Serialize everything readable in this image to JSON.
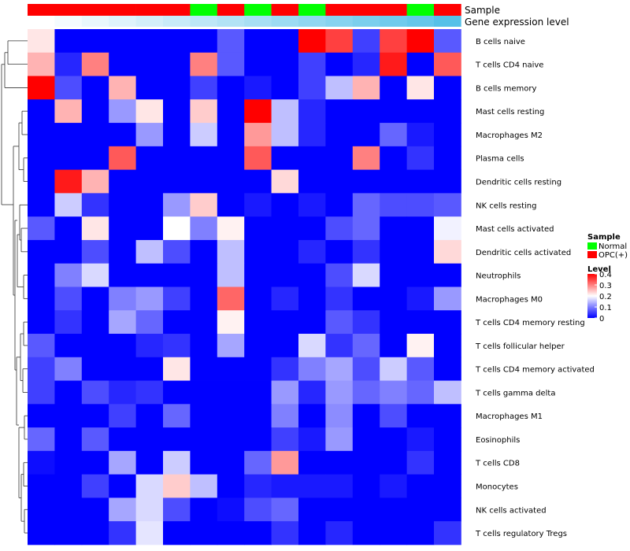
{
  "chart_data": {
    "type": "heatmap",
    "title": "",
    "annotation_rows": [
      {
        "name": "Sample",
        "values": [
          "OPC(+)",
          "OPC(+)",
          "OPC(+)",
          "OPC(+)",
          "OPC(+)",
          "OPC(+)",
          "Normal",
          "OPC(+)",
          "Normal",
          "OPC(+)",
          "Normal",
          "OPC(+)",
          "OPC(+)",
          "OPC(+)",
          "Normal",
          "OPC(+)"
        ]
      },
      {
        "name": "Gene expression level",
        "values": [
          0.0,
          0.02,
          0.04,
          0.06,
          0.08,
          0.1,
          0.13,
          0.16,
          0.19,
          0.22,
          0.25,
          0.28,
          0.31,
          0.33,
          0.36,
          0.38
        ],
        "colors": [
          "#ffffff",
          "#f4fbfe",
          "#e9f7fc",
          "#deF3fb",
          "#d3eff9",
          "#c8ebf8",
          "#bde7f6",
          "#b2e3f5",
          "#a7dff3",
          "#9cdbf2",
          "#91d7f0",
          "#86d3ef",
          "#7bcfed",
          "#70cbec",
          "#65c7ea",
          "#56c1e8"
        ]
      }
    ],
    "row_labels": [
      "B cells naive",
      "T cells CD4 naive",
      "B cells memory",
      "Mast cells resting",
      "Macrophages M2",
      "Plasma cells",
      "Dendritic cells resting",
      "NK cells resting",
      "Mast cells activated",
      "Dendritic cells activated",
      "Neutrophils",
      "Macrophages M0",
      "T cells CD4 memory resting",
      "T cells follicular helper",
      "T cells CD4 memory activated",
      "T cells gamma delta",
      "Macrophages M1",
      "Eosinophils",
      "T cells CD8",
      "Monocytes",
      "NK cells activated",
      "T cells regulatory  Tregs"
    ],
    "values": [
      [
        0.22,
        0.0,
        0.0,
        0.0,
        0.0,
        0.0,
        0.0,
        0.07,
        0.0,
        0.0,
        0.4,
        0.35,
        0.05,
        0.35,
        0.4,
        0.07
      ],
      [
        0.26,
        0.03,
        0.3,
        0.0,
        0.0,
        0.0,
        0.3,
        0.07,
        0.0,
        0.0,
        0.05,
        0.0,
        0.03,
        0.38,
        0.0,
        0.33
      ],
      [
        0.4,
        0.06,
        0.0,
        0.26,
        0.0,
        0.0,
        0.05,
        0.0,
        0.02,
        0.0,
        0.05,
        0.15,
        0.26,
        0.0,
        0.22,
        0.0
      ],
      [
        0.0,
        0.26,
        0.0,
        0.12,
        0.22,
        0.0,
        0.24,
        0.0,
        0.4,
        0.15,
        0.03,
        0.0,
        0.0,
        0.0,
        0.0,
        0.0
      ],
      [
        0.0,
        0.0,
        0.0,
        0.0,
        0.12,
        0.0,
        0.16,
        0.0,
        0.28,
        0.15,
        0.03,
        0.0,
        0.0,
        0.08,
        0.02,
        0.0
      ],
      [
        0.0,
        0.0,
        0.0,
        0.33,
        0.0,
        0.0,
        0.0,
        0.0,
        0.33,
        0.0,
        0.0,
        0.0,
        0.3,
        0.0,
        0.04,
        0.0
      ],
      [
        0.0,
        0.38,
        0.26,
        0.0,
        0.0,
        0.0,
        0.0,
        0.0,
        0.0,
        0.23,
        0.0,
        0.0,
        0.0,
        0.0,
        0.0,
        0.0
      ],
      [
        0.0,
        0.16,
        0.04,
        0.0,
        0.0,
        0.12,
        0.24,
        0.0,
        0.02,
        0.0,
        0.02,
        0.0,
        0.08,
        0.06,
        0.06,
        0.07
      ],
      [
        0.07,
        0.0,
        0.22,
        0.0,
        0.0,
        0.2,
        0.1,
        0.21,
        0.0,
        0.0,
        0.0,
        0.06,
        0.08,
        0.0,
        0.0,
        0.19
      ],
      [
        0.0,
        0.0,
        0.06,
        0.0,
        0.15,
        0.06,
        0.0,
        0.15,
        0.0,
        0.0,
        0.03,
        0.0,
        0.04,
        0.0,
        0.0,
        0.23
      ],
      [
        0.0,
        0.1,
        0.17,
        0.0,
        0.0,
        0.0,
        0.0,
        0.15,
        0.0,
        0.0,
        0.0,
        0.06,
        0.17,
        0.0,
        0.0,
        0.0
      ],
      [
        0.0,
        0.06,
        0.0,
        0.1,
        0.12,
        0.05,
        0.0,
        0.32,
        0.0,
        0.03,
        0.0,
        0.04,
        0.0,
        0.0,
        0.02,
        0.12
      ],
      [
        0.0,
        0.04,
        0.0,
        0.13,
        0.08,
        0.0,
        0.0,
        0.21,
        0.0,
        0.0,
        0.0,
        0.07,
        0.04,
        0.0,
        0.0,
        0.0
      ],
      [
        0.07,
        0.0,
        0.0,
        0.0,
        0.03,
        0.04,
        0.0,
        0.13,
        0.0,
        0.0,
        0.17,
        0.04,
        0.08,
        0.0,
        0.21,
        0.0
      ],
      [
        0.05,
        0.1,
        0.0,
        0.0,
        0.0,
        0.22,
        0.0,
        0.0,
        0.0,
        0.04,
        0.1,
        0.13,
        0.06,
        0.16,
        0.07,
        0.0
      ],
      [
        0.05,
        0.0,
        0.06,
        0.03,
        0.04,
        0.0,
        0.0,
        0.0,
        0.0,
        0.12,
        0.03,
        0.12,
        0.08,
        0.1,
        0.08,
        0.15
      ],
      [
        0.0,
        0.0,
        0.0,
        0.05,
        0.0,
        0.08,
        0.0,
        0.0,
        0.0,
        0.1,
        0.0,
        0.11,
        0.0,
        0.06,
        0.0,
        0.0
      ],
      [
        0.08,
        0.0,
        0.07,
        0.0,
        0.0,
        0.0,
        0.0,
        0.0,
        0.0,
        0.05,
        0.02,
        0.12,
        0.0,
        0.0,
        0.02,
        0.0
      ],
      [
        0.01,
        0.0,
        0.0,
        0.13,
        0.0,
        0.16,
        0.0,
        0.0,
        0.08,
        0.28,
        0.0,
        0.0,
        0.0,
        0.0,
        0.04,
        0.0
      ],
      [
        0.0,
        0.0,
        0.05,
        0.0,
        0.17,
        0.24,
        0.15,
        0.0,
        0.03,
        0.02,
        0.02,
        0.02,
        0.0,
        0.02,
        0.0,
        0.0
      ],
      [
        0.0,
        0.0,
        0.0,
        0.13,
        0.17,
        0.06,
        0.0,
        0.01,
        0.06,
        0.08,
        0.0,
        0.0,
        0.0,
        0.0,
        0.0,
        0.0
      ],
      [
        0.0,
        0.0,
        0.0,
        0.04,
        0.18,
        0.0,
        0.0,
        0.0,
        0.0,
        0.04,
        0.0,
        0.03,
        0.0,
        0.0,
        0.0,
        0.04
      ]
    ],
    "color_scale": {
      "min": 0,
      "max": 0.4,
      "stops": [
        {
          "value": 0.0,
          "color": "#0000ff"
        },
        {
          "value": 0.2,
          "color": "#ffffff"
        },
        {
          "value": 0.4,
          "color": "#ff0000"
        }
      ]
    },
    "legend": {
      "sample_title": "Sample",
      "sample_items": [
        {
          "label": "Normal",
          "color": "#00ff00"
        },
        {
          "label": "OPC(+)",
          "color": "#ff0000"
        }
      ],
      "level_title": "Level",
      "level_ticks": [
        "0.4",
        "0.3",
        "0.2",
        "0.1",
        "0"
      ],
      "level_tick_values": [
        0.4,
        0.3,
        0.2,
        0.1,
        0.0
      ]
    },
    "sample_colors": {
      "Normal": "#00ff00",
      "OPC(+)": "#ff0000"
    }
  }
}
